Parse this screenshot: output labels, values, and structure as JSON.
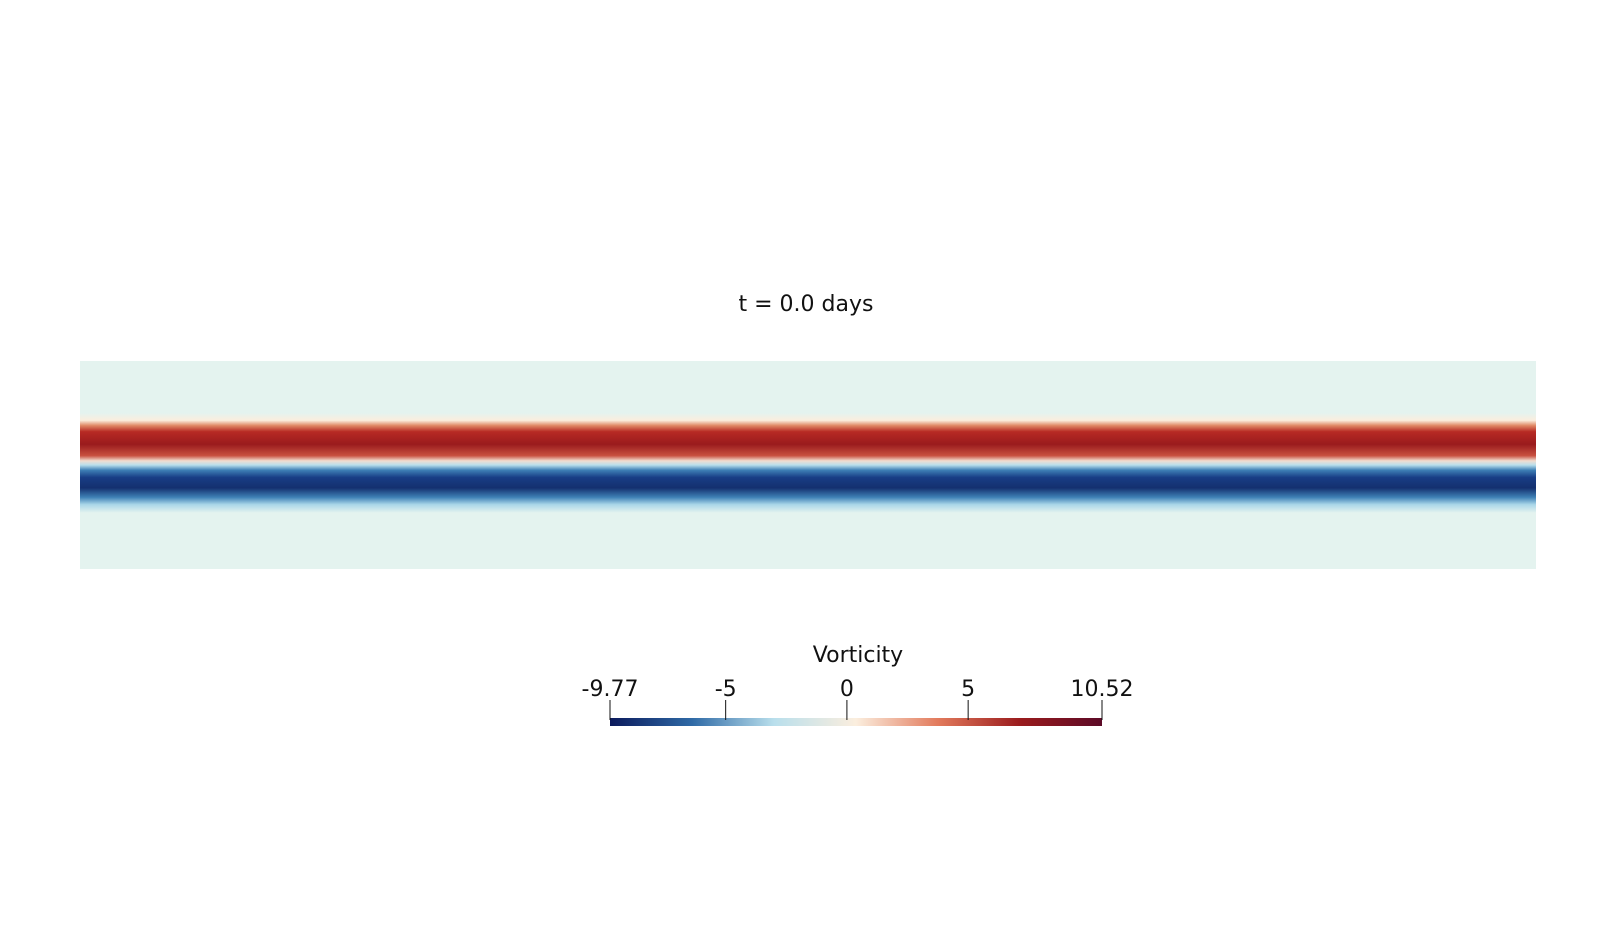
{
  "title": "t = 0.0 days",
  "chart_data": {
    "type": "heatmap",
    "title": "t = 0.0 days",
    "colorbar": {
      "title": "Vorticity",
      "min": -9.77,
      "max": 10.52,
      "ticks": [
        -9.77,
        -5,
        0,
        5,
        10.52
      ],
      "tick_labels": [
        "-9.77",
        "-5",
        "0",
        "5",
        "10.52"
      ],
      "colormap": [
        "#0b1a5c",
        "#2f6aa6",
        "#b9dfec",
        "#fbeede",
        "#e27a5c",
        "#9a1b1d",
        "#5c0a27"
      ]
    },
    "field": {
      "background_value": 0,
      "bands": [
        {
          "sign": "positive",
          "peak": 10.52,
          "order": 1
        },
        {
          "sign": "negative",
          "peak": -9.77,
          "order": 2
        }
      ]
    }
  }
}
